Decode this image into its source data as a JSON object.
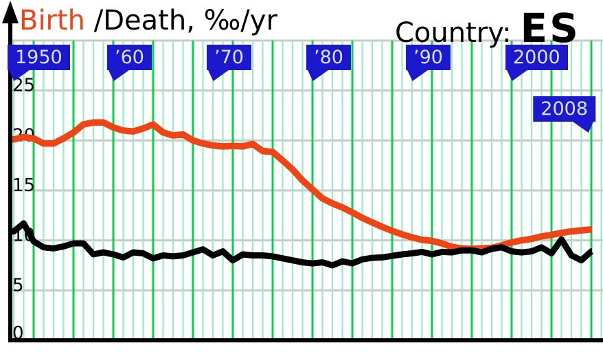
{
  "header": {
    "birth_label": "Birth",
    "rest_label": " /Death, ‰/yr",
    "country_label": "Country:",
    "country_code": "ES"
  },
  "colors": {
    "birth_line": "#ED4515",
    "death_line": "#000000",
    "flag_bg": "#1C18CE",
    "flag_text": "#D9E2F8",
    "grid_year": "#98EBC8",
    "grid_leap_year": "#00D64A",
    "grid_horizontal": "#C9C9C9",
    "axis": "#000000"
  },
  "flags": [
    {
      "label": "1950",
      "year": 1950,
      "tail": "left",
      "row": "top"
    },
    {
      "label": "’60",
      "year": 1960,
      "tail": "left",
      "row": "top"
    },
    {
      "label": "’70",
      "year": 1970,
      "tail": "left",
      "row": "top"
    },
    {
      "label": "’80",
      "year": 1980,
      "tail": "left",
      "row": "top"
    },
    {
      "label": "’90",
      "year": 1990,
      "tail": "left",
      "row": "top"
    },
    {
      "label": "2000",
      "year": 2000,
      "tail": "left",
      "row": "top"
    },
    {
      "label": "2008",
      "year": 2008,
      "tail": "right",
      "row": "lower"
    }
  ],
  "y_axis": {
    "ticks": [
      25,
      20,
      15,
      10,
      5,
      0
    ]
  },
  "chart_data": {
    "type": "line",
    "title": "Birth /Death, ‰/yr",
    "country": "ES",
    "ylabel": "‰/yr",
    "ylim": [
      0,
      30
    ],
    "xlim": [
      1950,
      2009
    ],
    "grid": "vertical green line every year (bright every 4th/leap year), horizontal gray every 5 units",
    "legend": "Birth = orange-red line, Death = black line",
    "x": [
      1950,
      1951,
      1952,
      1953,
      1954,
      1955,
      1956,
      1957,
      1958,
      1959,
      1960,
      1961,
      1962,
      1963,
      1964,
      1965,
      1966,
      1967,
      1968,
      1969,
      1970,
      1971,
      1972,
      1973,
      1974,
      1975,
      1976,
      1977,
      1978,
      1979,
      1980,
      1981,
      1982,
      1983,
      1984,
      1985,
      1986,
      1987,
      1988,
      1989,
      1990,
      1991,
      1992,
      1993,
      1994,
      1995,
      1996,
      1997,
      1998,
      1999,
      2000,
      2001,
      2002,
      2003,
      2004,
      2005,
      2006,
      2007,
      2008
    ],
    "series": [
      {
        "name": "Birth rate",
        "color": "#ED4515",
        "values": [
          20.1,
          20.35,
          20.2,
          19.7,
          19.7,
          20.2,
          20.8,
          21.6,
          21.8,
          21.8,
          21.3,
          21.0,
          20.9,
          21.2,
          21.6,
          20.8,
          20.5,
          20.6,
          20.0,
          19.7,
          19.5,
          19.4,
          19.45,
          19.4,
          19.65,
          18.95,
          18.85,
          18.0,
          17.1,
          16.0,
          15.1,
          14.2,
          13.7,
          13.3,
          12.8,
          12.25,
          11.8,
          11.35,
          10.95,
          10.6,
          10.3,
          10.05,
          9.95,
          9.7,
          9.35,
          9.2,
          9.15,
          9.2,
          9.25,
          9.5,
          9.8,
          10.0,
          10.15,
          10.4,
          10.55,
          10.75,
          10.9,
          11.0,
          11.1
        ]
      },
      {
        "name": "Death rate",
        "color": "#000000",
        "values": [
          10.9,
          11.7,
          9.9,
          9.3,
          9.2,
          9.4,
          9.7,
          9.7,
          8.6,
          8.8,
          8.6,
          8.3,
          8.8,
          8.7,
          8.2,
          8.5,
          8.4,
          8.5,
          8.8,
          9.1,
          8.5,
          8.9,
          8.0,
          8.6,
          8.5,
          8.5,
          8.4,
          8.2,
          8.0,
          7.8,
          7.7,
          7.8,
          7.5,
          7.9,
          7.7,
          8.1,
          8.25,
          8.3,
          8.45,
          8.6,
          8.7,
          8.85,
          8.6,
          8.85,
          8.8,
          9.0,
          9.0,
          8.8,
          9.15,
          9.3,
          8.9,
          8.8,
          8.9,
          9.3,
          8.7,
          10.1,
          8.5,
          8.0,
          8.9
        ]
      }
    ]
  }
}
